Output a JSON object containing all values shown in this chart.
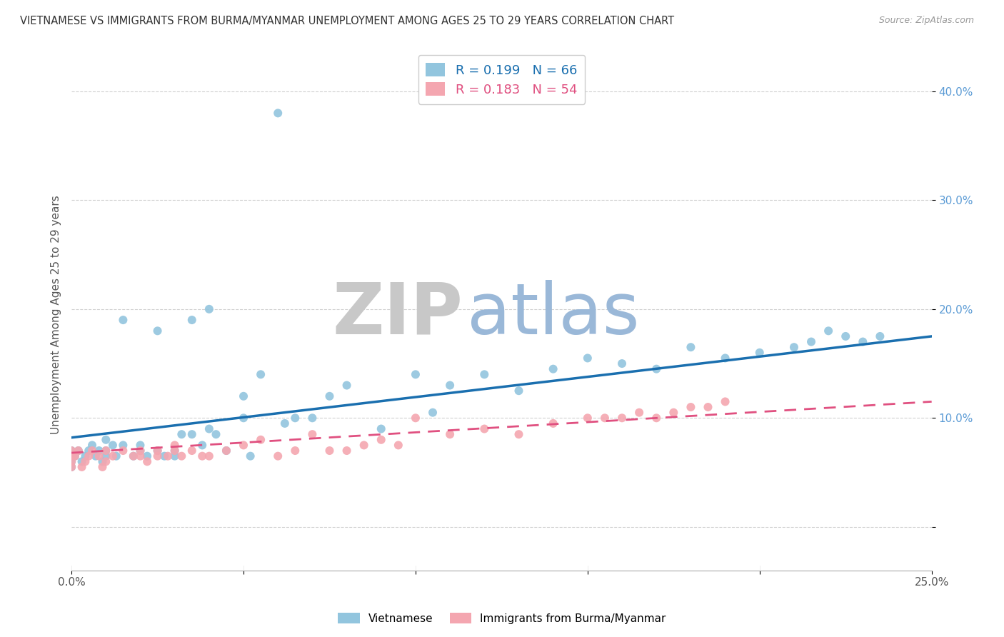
{
  "title": "VIETNAMESE VS IMMIGRANTS FROM BURMA/MYANMAR UNEMPLOYMENT AMONG AGES 25 TO 29 YEARS CORRELATION CHART",
  "source": "Source: ZipAtlas.com",
  "ylabel": "Unemployment Among Ages 25 to 29 years",
  "r_vietnamese": 0.199,
  "n_vietnamese": 66,
  "r_burma": 0.183,
  "n_burma": 54,
  "color_vietnamese": "#92c5de",
  "color_burma": "#f4a6b0",
  "trend_color_vietnamese": "#1a6faf",
  "trend_color_burma": "#e05080",
  "trend_line_start_v": 0.082,
  "trend_line_end_v": 0.175,
  "trend_line_start_b": 0.068,
  "trend_line_end_b": 0.115,
  "watermark_zip": "ZIP",
  "watermark_atlas": "atlas",
  "watermark_color_zip": "#c8c8c8",
  "watermark_color_atlas": "#9ab8d8",
  "legend_label_vietnamese": "Vietnamese",
  "legend_label_burma": "Immigrants from Burma/Myanmar",
  "xlim": [
    0.0,
    0.25
  ],
  "ylim": [
    -0.04,
    0.43
  ],
  "background_color": "#ffffff",
  "grid_color": "#cccccc",
  "tick_color_y": "#5b9bd5",
  "tick_color_x": "#555555",
  "vietnamese_x": [
    0.0,
    0.0,
    0.0,
    0.0,
    0.001,
    0.002,
    0.003,
    0.004,
    0.005,
    0.006,
    0.007,
    0.008,
    0.009,
    0.01,
    0.01,
    0.01,
    0.012,
    0.013,
    0.015,
    0.015,
    0.018,
    0.02,
    0.02,
    0.022,
    0.025,
    0.025,
    0.027,
    0.03,
    0.03,
    0.032,
    0.035,
    0.035,
    0.038,
    0.04,
    0.04,
    0.042,
    0.045,
    0.05,
    0.05,
    0.052,
    0.055,
    0.06,
    0.062,
    0.065,
    0.07,
    0.075,
    0.08,
    0.09,
    0.1,
    0.105,
    0.11,
    0.12,
    0.13,
    0.14,
    0.15,
    0.16,
    0.17,
    0.18,
    0.19,
    0.2,
    0.21,
    0.215,
    0.22,
    0.225,
    0.23,
    0.235
  ],
  "vietnamese_y": [
    0.065,
    0.07,
    0.055,
    0.06,
    0.065,
    0.07,
    0.06,
    0.065,
    0.07,
    0.075,
    0.065,
    0.07,
    0.06,
    0.065,
    0.08,
    0.07,
    0.075,
    0.065,
    0.19,
    0.075,
    0.065,
    0.07,
    0.075,
    0.065,
    0.18,
    0.07,
    0.065,
    0.065,
    0.07,
    0.085,
    0.085,
    0.19,
    0.075,
    0.2,
    0.09,
    0.085,
    0.07,
    0.12,
    0.1,
    0.065,
    0.14,
    0.38,
    0.095,
    0.1,
    0.1,
    0.12,
    0.13,
    0.09,
    0.14,
    0.105,
    0.13,
    0.14,
    0.125,
    0.145,
    0.155,
    0.15,
    0.145,
    0.165,
    0.155,
    0.16,
    0.165,
    0.17,
    0.18,
    0.175,
    0.17,
    0.175
  ],
  "burma_x": [
    0.0,
    0.0,
    0.0,
    0.0,
    0.001,
    0.002,
    0.003,
    0.004,
    0.005,
    0.006,
    0.008,
    0.009,
    0.01,
    0.01,
    0.012,
    0.015,
    0.018,
    0.02,
    0.02,
    0.022,
    0.025,
    0.025,
    0.028,
    0.03,
    0.03,
    0.032,
    0.035,
    0.038,
    0.04,
    0.045,
    0.05,
    0.055,
    0.06,
    0.065,
    0.07,
    0.075,
    0.08,
    0.085,
    0.09,
    0.095,
    0.1,
    0.11,
    0.12,
    0.13,
    0.14,
    0.15,
    0.155,
    0.16,
    0.165,
    0.17,
    0.175,
    0.18,
    0.185,
    0.19
  ],
  "burma_y": [
    0.065,
    0.07,
    0.055,
    0.06,
    0.065,
    0.07,
    0.055,
    0.06,
    0.065,
    0.07,
    0.065,
    0.055,
    0.06,
    0.07,
    0.065,
    0.07,
    0.065,
    0.065,
    0.07,
    0.06,
    0.065,
    0.07,
    0.065,
    0.07,
    0.075,
    0.065,
    0.07,
    0.065,
    0.065,
    0.07,
    0.075,
    0.08,
    0.065,
    0.07,
    0.085,
    0.07,
    0.07,
    0.075,
    0.08,
    0.075,
    0.1,
    0.085,
    0.09,
    0.085,
    0.095,
    0.1,
    0.1,
    0.1,
    0.105,
    0.1,
    0.105,
    0.11,
    0.11,
    0.115
  ]
}
